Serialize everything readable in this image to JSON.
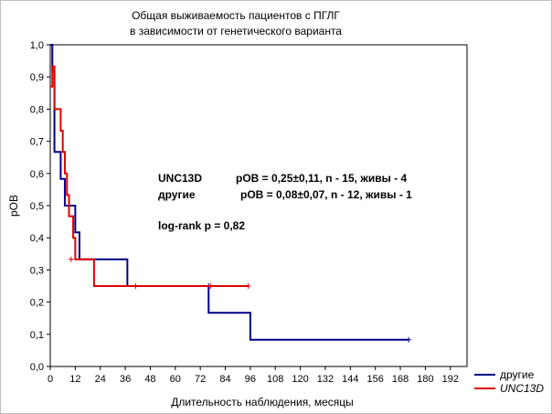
{
  "chart_data": {
    "type": "line",
    "subtype": "kaplan-meier step curve",
    "title": [
      "Общая выживаемость пациентов с ПГЛГ",
      "в зависимости от генетического варианта"
    ],
    "xlabel": "Длительность наблюдения, месяцы",
    "ylabel": "pOB",
    "xlim": [
      0,
      200
    ],
    "ylim": [
      0,
      1
    ],
    "x_ticks": [
      "0",
      "12",
      "24",
      "36",
      "48",
      "60",
      "72",
      "84",
      "96",
      "108",
      "120",
      "132",
      "144",
      "156",
      "168",
      "180",
      "192"
    ],
    "y_ticks": [
      "0,0",
      "0,1",
      "0,2",
      "0,3",
      "0,4",
      "0,5",
      "0,6",
      "0,7",
      "0,8",
      "0,9",
      "1,0"
    ],
    "grid": false,
    "legend_position": "bottom-right",
    "series": [
      {
        "name": "другие",
        "color": "#00008b",
        "italic": false,
        "steps": [
          [
            0,
            1.0
          ],
          [
            1,
            0.917
          ],
          [
            2,
            0.667
          ],
          [
            5,
            0.583
          ],
          [
            7,
            0.5
          ],
          [
            11,
            0.5
          ],
          [
            12,
            0.417
          ],
          [
            14,
            0.333
          ],
          [
            37,
            0.333
          ],
          [
            37,
            0.25
          ],
          [
            76,
            0.25
          ],
          [
            76,
            0.167
          ],
          [
            96,
            0.167
          ],
          [
            96,
            0.083
          ],
          [
            172,
            0.083
          ]
        ],
        "censored": [
          [
            76,
            0.25
          ],
          [
            172,
            0.083
          ]
        ]
      },
      {
        "name": "UNC13D",
        "color": "#e00000",
        "italic": true,
        "steps": [
          [
            0,
            0.87
          ],
          [
            1,
            0.933
          ],
          [
            2,
            0.8
          ],
          [
            5,
            0.733
          ],
          [
            6,
            0.667
          ],
          [
            7,
            0.6
          ],
          [
            8,
            0.533
          ],
          [
            9,
            0.467
          ],
          [
            11,
            0.4
          ],
          [
            12,
            0.333
          ],
          [
            21,
            0.333
          ],
          [
            21,
            0.25
          ],
          [
            95,
            0.25
          ]
        ],
        "censored": [
          [
            10,
            0.333
          ],
          [
            41,
            0.25
          ],
          [
            77,
            0.25
          ],
          [
            95,
            0.25
          ]
        ]
      }
    ],
    "annotations": {
      "line1_name": "UNC13D",
      "line1_stats": "pOB = 0,25±0,11, n - 15, живы - 4",
      "line2_name": "другие",
      "line2_stats": "pOB = 0,08±0,07, n - 12, живы - 1",
      "logrank": "log-rank  p = 0,82"
    }
  }
}
